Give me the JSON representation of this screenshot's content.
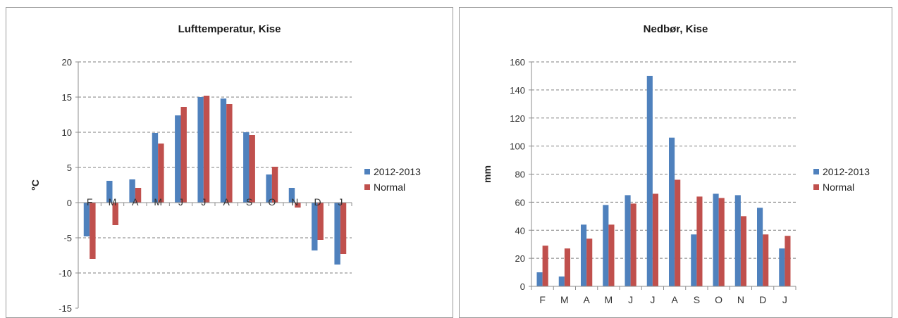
{
  "chart_data": [
    {
      "type": "bar",
      "title": "Lufttemperatur, Kise",
      "ylabel": "°C",
      "xlabel": "",
      "ylim": [
        -15,
        20
      ],
      "yticks": [
        -15,
        -10,
        -5,
        0,
        5,
        10,
        15,
        20
      ],
      "categories": [
        "F",
        "M",
        "A",
        "M",
        "J",
        "J",
        "A",
        "S",
        "O",
        "N",
        "D",
        "J"
      ],
      "series": [
        {
          "name": "2012-2013",
          "color": "#4f81bd",
          "values": [
            -4.8,
            3.1,
            3.3,
            9.9,
            12.4,
            15.0,
            14.8,
            10.0,
            4.0,
            2.1,
            -6.8,
            -8.8
          ]
        },
        {
          "name": "Normal",
          "color": "#c0504d",
          "values": [
            -8.0,
            -3.2,
            2.1,
            8.4,
            13.6,
            15.2,
            14.0,
            9.6,
            5.1,
            -0.7,
            -5.3,
            -7.3
          ]
        }
      ],
      "grid": true,
      "gridstyle": "dashed",
      "legend_position": "right"
    },
    {
      "type": "bar",
      "title": "Nedbør, Kise",
      "ylabel": "mm",
      "xlabel": "",
      "ylim": [
        0,
        160
      ],
      "yticks": [
        0,
        20,
        40,
        60,
        80,
        100,
        120,
        140,
        160
      ],
      "categories": [
        "F",
        "M",
        "A",
        "M",
        "J",
        "J",
        "A",
        "S",
        "O",
        "N",
        "D",
        "J"
      ],
      "series": [
        {
          "name": "2012-2013",
          "color": "#4f81bd",
          "values": [
            10,
            7,
            44,
            58,
            65,
            150,
            106,
            37,
            66,
            65,
            56,
            27
          ]
        },
        {
          "name": "Normal",
          "color": "#c0504d",
          "values": [
            29,
            27,
            34,
            44,
            59,
            66,
            76,
            64,
            63,
            50,
            37,
            36
          ]
        }
      ],
      "grid": true,
      "gridstyle": "dashed",
      "legend_position": "right"
    }
  ]
}
